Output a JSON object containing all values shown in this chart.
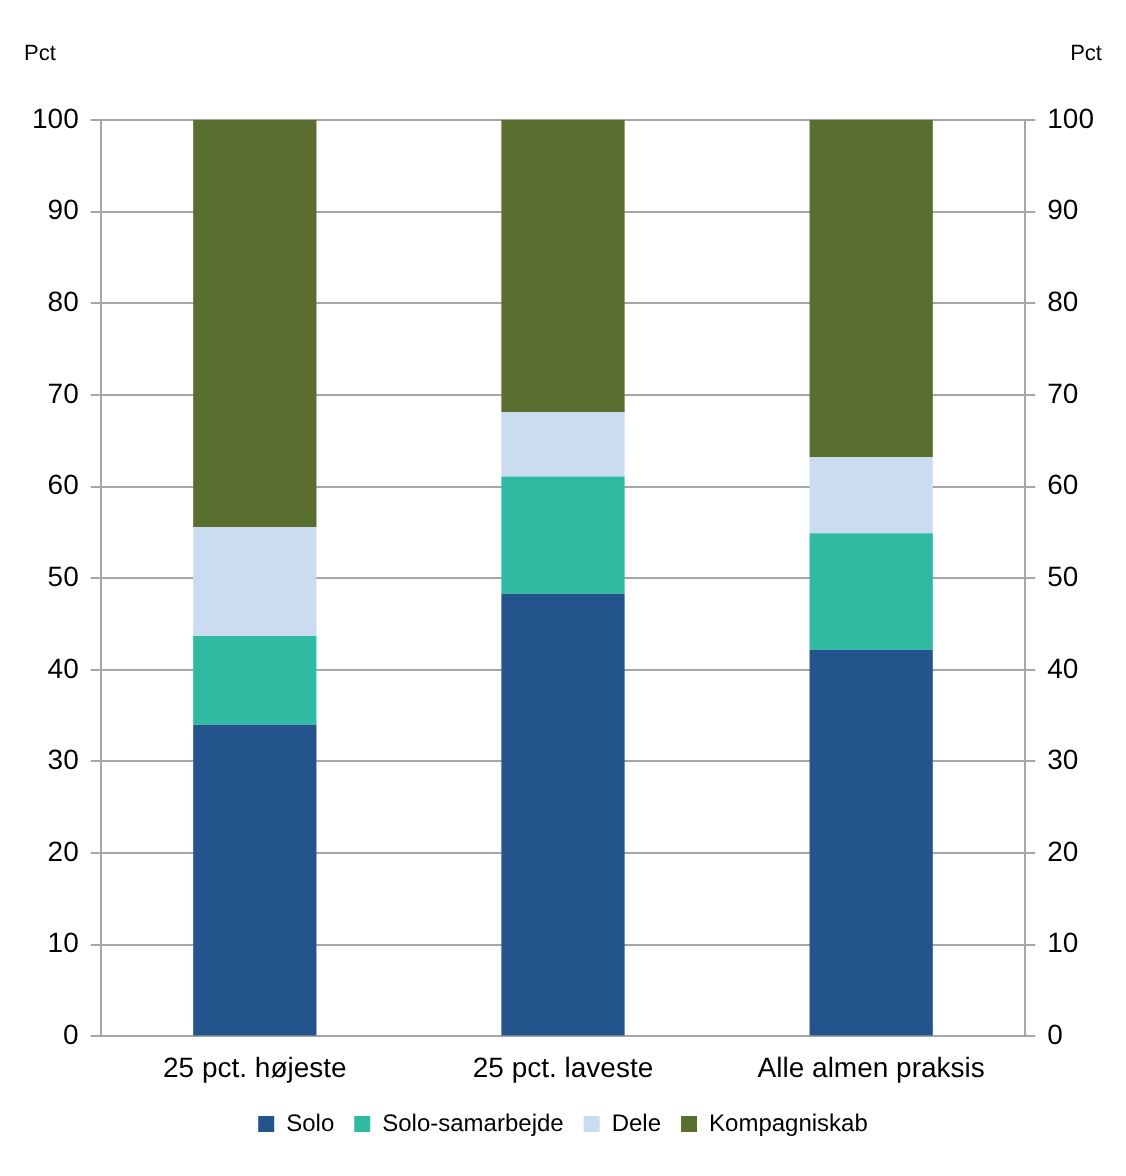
{
  "chart_data": {
    "type": "bar",
    "stacked": true,
    "ylabel": "Pct",
    "y2label": "Pct",
    "categories": [
      "25 pct. højeste",
      "25 pct. laveste",
      "Alle almen praksis"
    ],
    "series": [
      {
        "name": "Solo",
        "color": "#23558c",
        "values": [
          34.0,
          48.3,
          42.2
        ]
      },
      {
        "name": "Solo-samarbejde",
        "color": "#31baa2",
        "values": [
          9.7,
          12.8,
          12.7
        ]
      },
      {
        "name": "Dele",
        "color": "#cbdcf1",
        "values": [
          11.9,
          7.0,
          8.3
        ]
      },
      {
        "name": "Kompagniskab",
        "color": "#5a6e2f",
        "values": [
          44.4,
          31.9,
          36.8
        ]
      }
    ],
    "ylim": [
      0,
      100
    ],
    "yticks": [
      0,
      10,
      20,
      30,
      40,
      50,
      60,
      70,
      80,
      90,
      100
    ],
    "y2lim": [
      0,
      100
    ],
    "y2ticks": [
      0,
      10,
      20,
      30,
      40,
      50,
      60,
      70,
      80,
      90,
      100
    ],
    "grid": "y",
    "legend": "bottom"
  }
}
